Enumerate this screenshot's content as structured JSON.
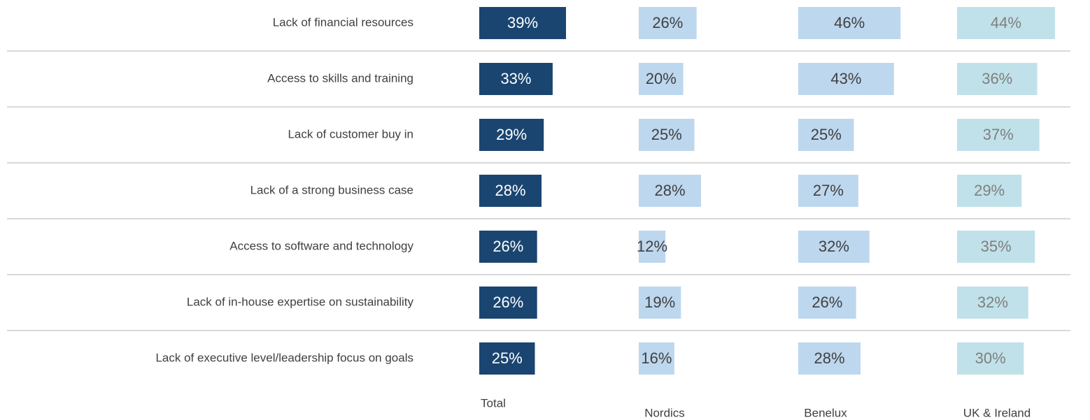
{
  "chart_data": {
    "type": "bar",
    "categories": [
      "Lack of financial resources",
      "Access to skills and training",
      "Lack of customer buy in",
      "Lack of a strong business case",
      "Access to software and technology",
      "Lack of in-house expertise on sustainability",
      "Lack of executive level/leadership focus on goals"
    ],
    "series": [
      {
        "name": "Total",
        "color": "#1a4570",
        "values": [
          39,
          33,
          29,
          28,
          26,
          26,
          25
        ],
        "value_labels": [
          "39%",
          "33%",
          "29%",
          "28%",
          "26%",
          "26%",
          "25%"
        ]
      },
      {
        "name": "Nordics",
        "color": "#bdd7ee",
        "values": [
          26,
          20,
          25,
          28,
          12,
          19,
          16
        ],
        "value_labels": [
          "26%",
          "20%",
          "25%",
          "28%",
          "12%",
          "19%",
          "16%"
        ]
      },
      {
        "name": "Benelux",
        "color": "#bdd7ee",
        "values": [
          46,
          43,
          25,
          27,
          32,
          26,
          28
        ],
        "value_labels": [
          "46%",
          "43%",
          "25%",
          "27%",
          "32%",
          "26%",
          "28%"
        ]
      },
      {
        "name": "UK & Ireland",
        "color": "#c0e1e9",
        "values": [
          44,
          36,
          37,
          29,
          35,
          32,
          30
        ],
        "value_labels": [
          "44%",
          "36%",
          "37%",
          "29%",
          "35%",
          "32%",
          "30%"
        ]
      }
    ]
  }
}
